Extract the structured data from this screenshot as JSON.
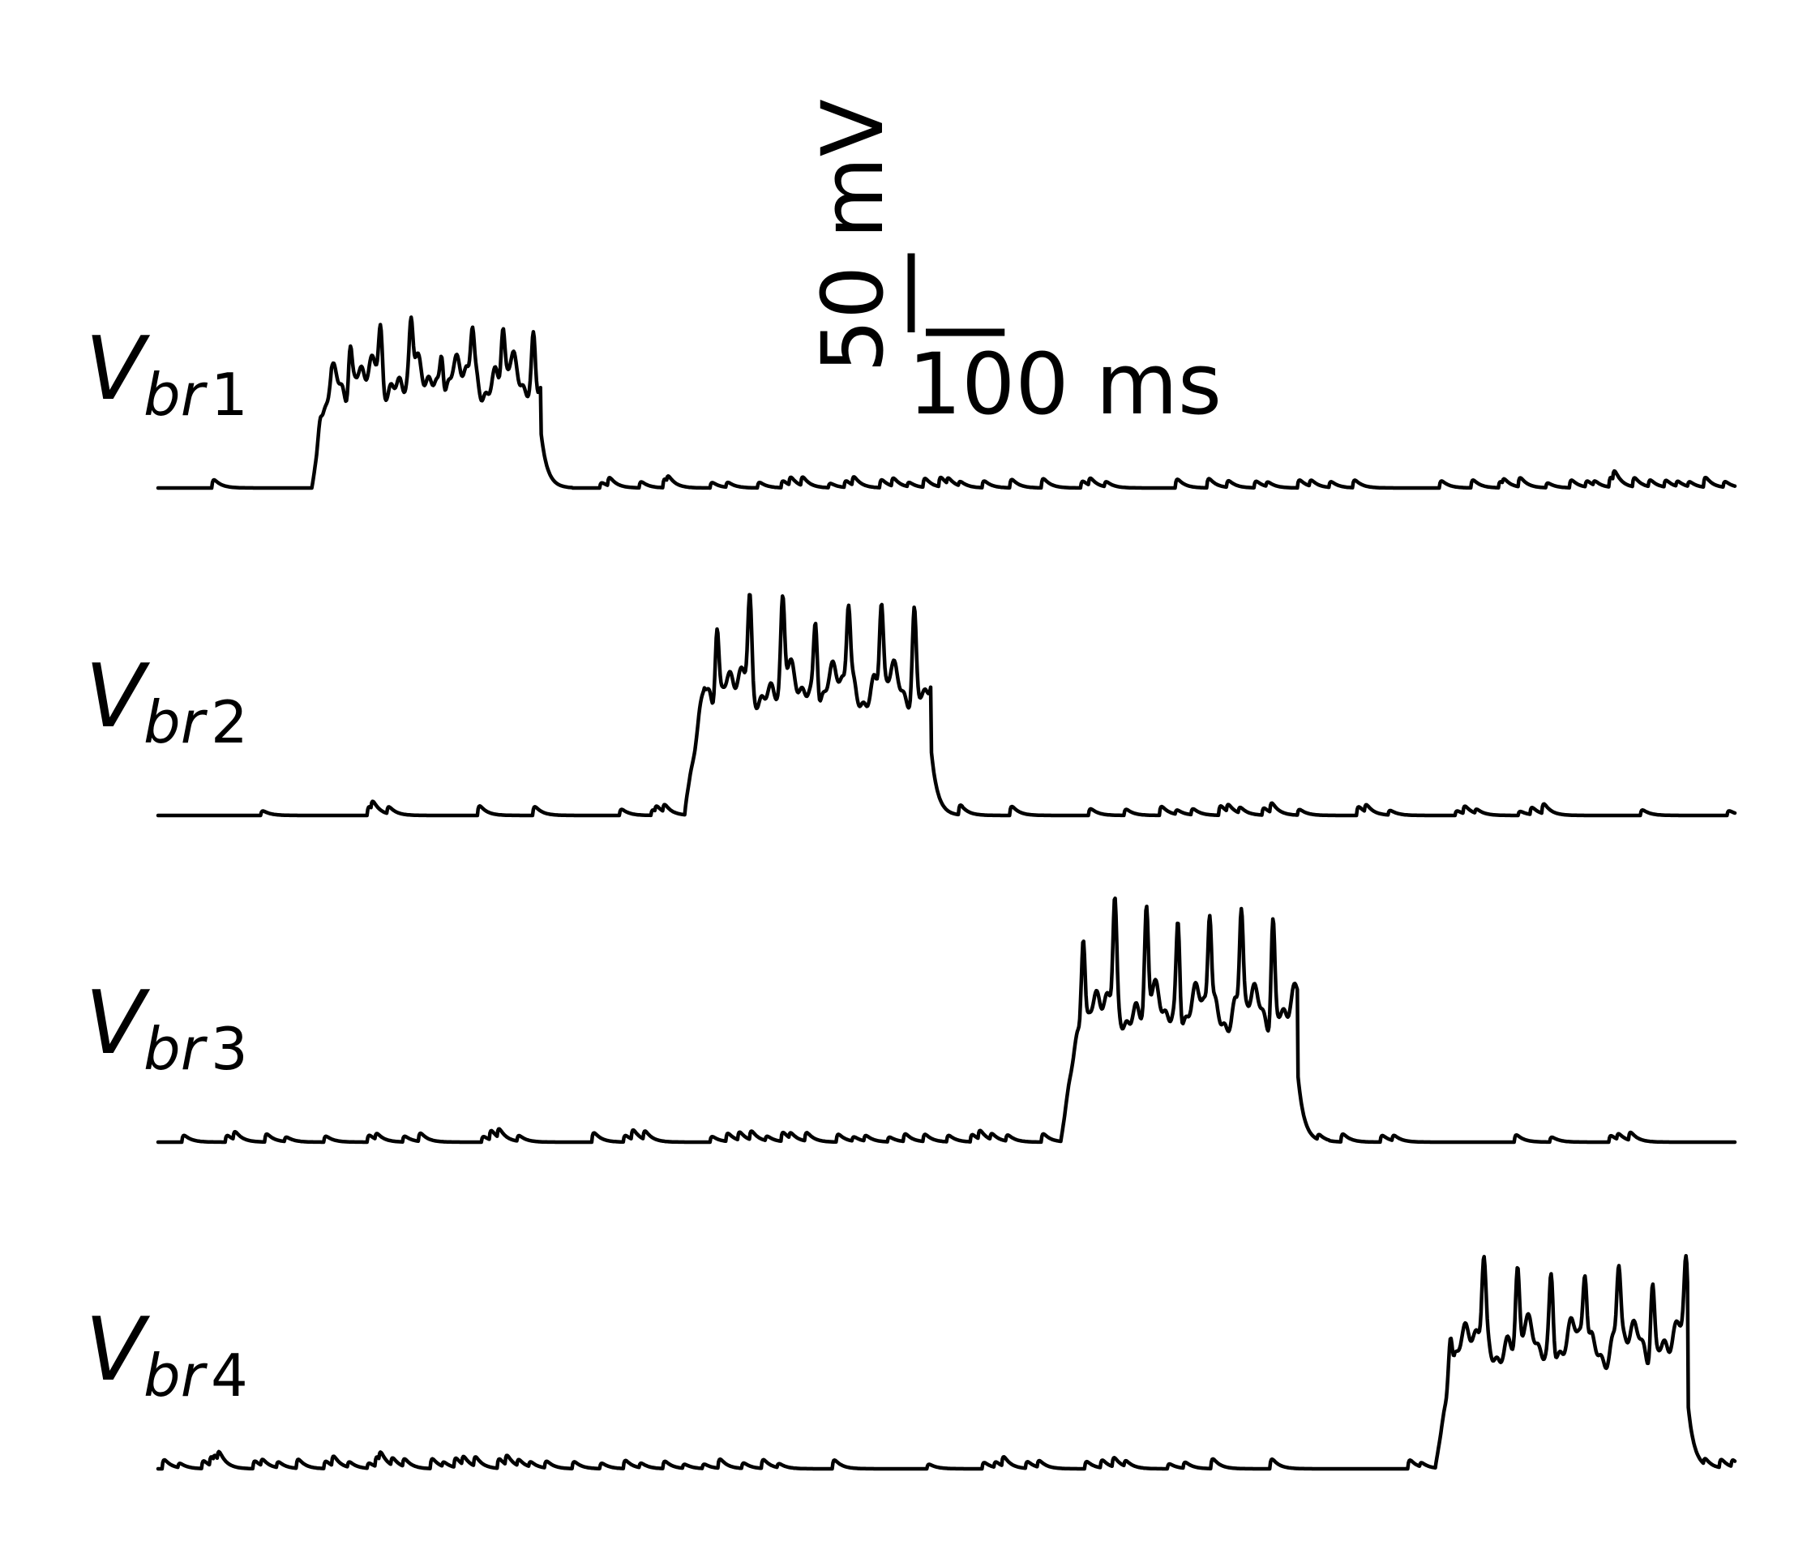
{
  "chart_data": {
    "type": "line",
    "title": "",
    "xlabel": "",
    "ylabel": "",
    "axes_visible": false,
    "grid": false,
    "legend": "none",
    "line_color": "#000000",
    "scale_bar": {
      "voltage_label": "50 mV",
      "voltage_value": 50,
      "voltage_unit": "mV",
      "time_label": "100 ms",
      "time_value": 100,
      "time_unit": "ms"
    },
    "x_range_ms": [
      0,
      2000
    ],
    "y_range_mV": [
      0,
      130
    ],
    "series": [
      {
        "name": "V_br1",
        "label_main": "V",
        "label_sub": "br",
        "label_num": "1",
        "burst_start_ms": 195,
        "burst_end_ms": 485,
        "peak_mV": 98,
        "plateau_mV": 70,
        "small_event_times_ms": [
          68,
          560,
          570,
          610,
          640,
          645,
          700,
          720,
          760,
          790,
          800,
          815,
          850,
          870,
          880,
          915,
          930,
          950,
          970,
          990,
          1000,
          1015,
          1045,
          1080,
          1120,
          1170,
          1180,
          1200,
          1290,
          1330,
          1355,
          1390,
          1405,
          1445,
          1460,
          1485,
          1515,
          1625,
          1665,
          1700,
          1705,
          1725,
          1760,
          1790,
          1810,
          1820,
          1840,
          1845,
          1870,
          1890,
          1910,
          1925,
          1940,
          1960,
          1985
        ]
      },
      {
        "name": "V_br2",
        "label_main": "V",
        "label_sub": "br",
        "label_num": "2",
        "burst_start_ms": 668,
        "burst_end_ms": 980,
        "peak_mV": 132,
        "plateau_mV": 82,
        "small_event_times_ms": [
          130,
          265,
          270,
          290,
          405,
          475,
          585,
          625,
          630,
          640,
          1015,
          1080,
          1180,
          1225,
          1270,
          1290,
          1310,
          1345,
          1355,
          1370,
          1400,
          1410,
          1445,
          1520,
          1530,
          1560,
          1645,
          1655,
          1670,
          1725,
          1740,
          1755,
          1880,
          1990
        ]
      },
      {
        "name": "V_br3",
        "label_main": "V",
        "label_sub": "br",
        "label_num": "3",
        "burst_start_ms": 1145,
        "burst_end_ms": 1445,
        "peak_mV": 145,
        "plateau_mV": 85,
        "small_event_times_ms": [
          30,
          85,
          95,
          135,
          160,
          210,
          265,
          275,
          310,
          330,
          410,
          420,
          430,
          455,
          550,
          590,
          600,
          615,
          700,
          720,
          735,
          750,
          770,
          790,
          800,
          820,
          860,
          880,
          895,
          925,
          945,
          970,
          1000,
          1030,
          1040,
          1055,
          1075,
          1120,
          1470,
          1500,
          1550,
          1565,
          1720,
          1765,
          1840,
          1850,
          1865
        ]
      },
      {
        "name": "V_br4",
        "label_main": "V",
        "label_sub": "br",
        "label_num": "4",
        "burst_start_ms": 1620,
        "burst_end_ms": 1940,
        "peak_mV": 125,
        "plateau_mV": 80,
        "small_event_times_ms": [
          5,
          25,
          55,
          65,
          70,
          75,
          120,
          130,
          150,
          175,
          210,
          220,
          240,
          265,
          275,
          280,
          295,
          310,
          345,
          360,
          375,
          385,
          400,
          430,
          440,
          455,
          470,
          490,
          525,
          560,
          590,
          610,
          640,
          665,
          690,
          710,
          740,
          765,
          785,
          855,
          975,
          1045,
          1060,
          1070,
          1100,
          1115,
          1175,
          1195,
          1210,
          1225,
          1280,
          1300,
          1335,
          1410,
          1585,
          1600,
          1960,
          1980,
          1995
        ]
      }
    ]
  }
}
